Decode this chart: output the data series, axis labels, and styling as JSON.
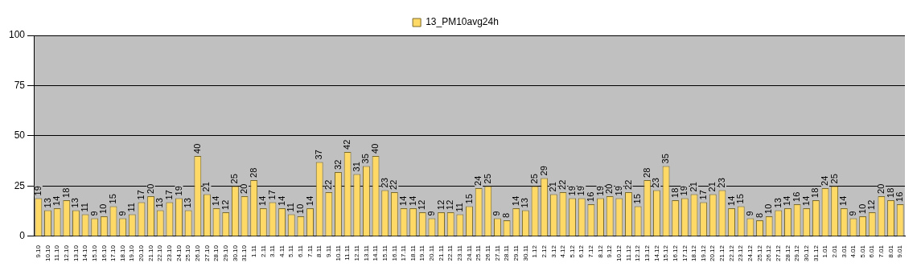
{
  "chart_data": {
    "type": "bar",
    "categories": [
      "9.10",
      "10.10",
      "11.10",
      "12.10",
      "13.10",
      "14.10",
      "15.10",
      "16.10",
      "17.10",
      "18.10",
      "19.10",
      "20.10",
      "21.10",
      "22.10",
      "23.10",
      "24.10",
      "25.10",
      "26.10",
      "27.10",
      "28.10",
      "29.10",
      "30.10",
      "31.10",
      "1.11",
      "2.11",
      "3.11",
      "4.11",
      "5.11",
      "6.11",
      "7.11",
      "8.11",
      "9.11",
      "10.11",
      "11.11",
      "12.11",
      "13.11",
      "14.11",
      "15.11",
      "16.11",
      "17.11",
      "18.11",
      "19.11",
      "20.11",
      "21.11",
      "22.11",
      "23.11",
      "24.11",
      "25.11",
      "26.11",
      "27.11",
      "28.11",
      "29.11",
      "30.11",
      "1.12",
      "2.12",
      "3.12",
      "4.12",
      "5.12",
      "6.12",
      "7.12",
      "8.12",
      "9.12",
      "10.12",
      "11.12",
      "12.12",
      "13.12",
      "14.12",
      "15.12",
      "16.12",
      "17.12",
      "18.12",
      "19.12",
      "20.12",
      "21.12",
      "22.12",
      "23.12",
      "24.12",
      "25.12",
      "26.12",
      "27.12",
      "28.12",
      "29.12",
      "30.12",
      "31.12",
      "1.01",
      "2.01",
      "3.01",
      "4.01",
      "5.01",
      "6.01",
      "7.01",
      "8.01",
      "9.01"
    ],
    "series": [
      {
        "name": "13_PM10avg24h",
        "color": "#ffd966",
        "values": [
          19,
          13,
          14,
          18,
          13,
          11,
          9,
          10,
          15,
          9,
          11,
          17,
          20,
          13,
          17,
          19,
          13,
          40,
          21,
          14,
          12,
          25,
          20,
          28,
          14,
          17,
          14,
          11,
          10,
          14,
          37,
          22,
          32,
          42,
          31,
          35,
          40,
          23,
          22,
          14,
          14,
          12,
          9,
          12,
          12,
          11,
          15,
          24,
          25,
          9,
          8,
          14,
          13,
          25,
          29,
          21,
          22,
          19,
          19,
          16,
          19,
          20,
          19,
          22,
          15,
          28,
          23,
          35,
          18,
          19,
          21,
          17,
          21,
          23,
          14,
          15,
          9,
          8,
          10,
          13,
          14,
          16,
          14,
          18,
          24,
          25,
          14,
          9,
          10,
          12,
          20,
          18,
          16
        ]
      }
    ],
    "ylim": [
      0,
      100
    ],
    "yticks": [
      0,
      25,
      50,
      75,
      100
    ],
    "grid": "y",
    "legend": "top",
    "data_labels": true
  }
}
